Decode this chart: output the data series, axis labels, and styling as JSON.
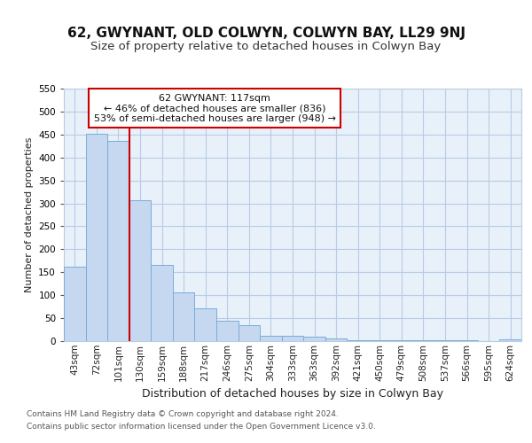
{
  "title1": "62, GWYNANT, OLD COLWYN, COLWYN BAY, LL29 9NJ",
  "title2": "Size of property relative to detached houses in Colwyn Bay",
  "xlabel": "Distribution of detached houses by size in Colwyn Bay",
  "ylabel": "Number of detached properties",
  "categories": [
    "43sqm",
    "72sqm",
    "101sqm",
    "130sqm",
    "159sqm",
    "188sqm",
    "217sqm",
    "246sqm",
    "275sqm",
    "304sqm",
    "333sqm",
    "363sqm",
    "392sqm",
    "421sqm",
    "450sqm",
    "479sqm",
    "508sqm",
    "537sqm",
    "566sqm",
    "595sqm",
    "624sqm"
  ],
  "values": [
    162,
    451,
    437,
    307,
    166,
    106,
    72,
    44,
    34,
    12,
    11,
    9,
    5,
    2,
    2,
    1,
    1,
    1,
    1,
    0,
    4
  ],
  "bar_color": "#c5d8f0",
  "bar_edge_color": "#7aadda",
  "vline_x": 2.5,
  "annotation_title": "62 GWYNANT: 117sqm",
  "annotation_line1": "← 46% of detached houses are smaller (836)",
  "annotation_line2": "53% of semi-detached houses are larger (948) →",
  "annotation_box_color": "#ffffff",
  "annotation_box_edge": "#cc0000",
  "vline_color": "#cc0000",
  "footnote1": "Contains HM Land Registry data © Crown copyright and database right 2024.",
  "footnote2": "Contains public sector information licensed under the Open Government Licence v3.0.",
  "bg_color": "#ffffff",
  "plot_bg_color": "#e8f0fa",
  "grid_color": "#b8cce4",
  "ylim": [
    0,
    550
  ],
  "title1_fontsize": 11,
  "title2_fontsize": 9.5,
  "xlabel_fontsize": 9,
  "ylabel_fontsize": 8,
  "tick_fontsize": 7.5,
  "annotation_fontsize": 8,
  "footnote_fontsize": 6.5
}
